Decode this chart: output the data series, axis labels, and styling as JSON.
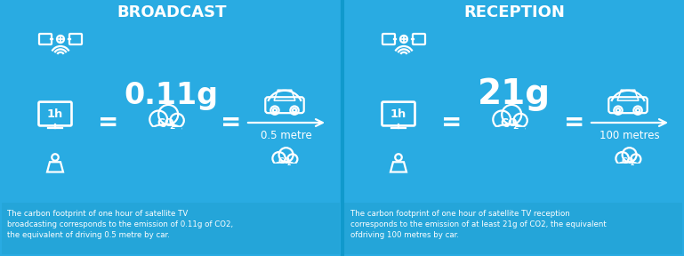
{
  "bg_color": "#29ABE2",
  "text_color": "#FFFFFF",
  "title_left": "BROADCAST",
  "title_right": "RECEPTION",
  "value_left": "0.11g",
  "value_right": "21g",
  "distance_left": "0.5 metre",
  "distance_right": "100 metres",
  "footer_left": "The carbon footprint of one hour of satellite TV\nbroadcasting corresponds to the emission of 0.11g of CO2,\nthe equivalent of driving 0.5 metre by car.",
  "footer_right": "The carbon footprint of one hour of satellite TV reception\ncorresponds to the emission of at least 21g of CO2, the equivalent\nofdriving 100 metres by car.",
  "divider_color": "#1099CC",
  "footer_bg": "#1E9FD0"
}
